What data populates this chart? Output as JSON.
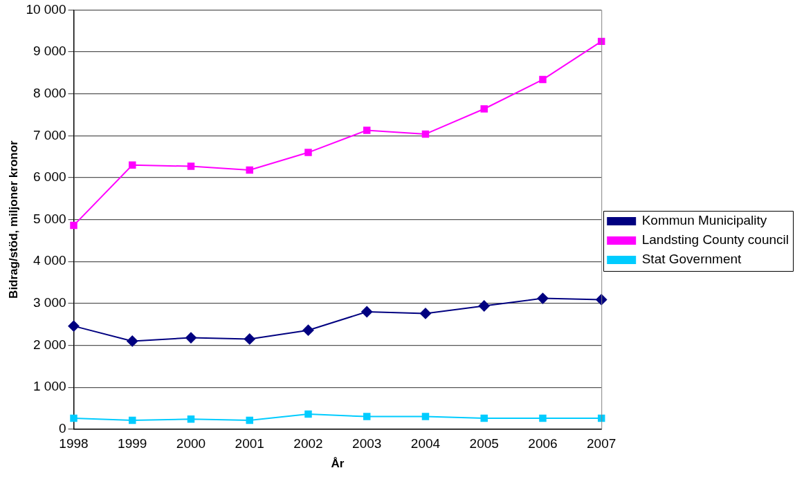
{
  "chart_data": {
    "type": "line",
    "xlabel": "År",
    "ylabel": "Bidrag/stöd, miljoner kronor",
    "categories": [
      "1998",
      "1999",
      "2000",
      "2001",
      "2002",
      "2003",
      "2004",
      "2005",
      "2006",
      "2007"
    ],
    "series": [
      {
        "name": "Kommun Municipality",
        "color": "#000080",
        "marker": "diamond",
        "values": [
          2460,
          2100,
          2180,
          2150,
          2360,
          2800,
          2760,
          2940,
          3120,
          3090
        ]
      },
      {
        "name": "Landsting County council",
        "color": "#ff00ff",
        "marker": "square",
        "values": [
          4860,
          6300,
          6270,
          6180,
          6600,
          7130,
          7040,
          7640,
          8340,
          9250
        ]
      },
      {
        "name": "Stat Government",
        "color": "#00ccff",
        "marker": "square",
        "values": [
          260,
          210,
          240,
          210,
          360,
          300,
          300,
          260,
          260,
          260
        ]
      }
    ],
    "ylim": [
      0,
      10000
    ],
    "yticks": [
      0,
      {
        "value": 1000,
        "label": "1 000"
      },
      {
        "value": 2000,
        "label": "2 000"
      },
      {
        "value": 3000,
        "label": "3 000"
      },
      {
        "value": 4000,
        "label": "4 000"
      },
      {
        "value": 5000,
        "label": "5 000"
      },
      {
        "value": 6000,
        "label": "6 000"
      },
      {
        "value": 7000,
        "label": "7 000"
      },
      {
        "value": 8000,
        "label": "8 000"
      },
      {
        "value": 9000,
        "label": "9 000"
      },
      {
        "value": 10000,
        "label": "10 000"
      }
    ],
    "grid": "y",
    "legend": "right",
    "line_style": "solid"
  }
}
